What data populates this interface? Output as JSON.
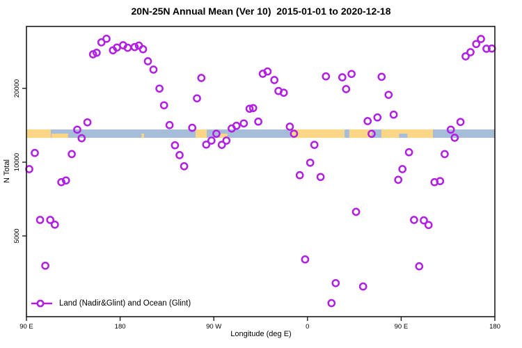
{
  "title": "20N-25N Annual Mean (Ver 10)  2015-01-01 to 2020-12-18",
  "axes": {
    "x": {
      "label": "Longitude (deg E)",
      "range_axis_degrees": [
        0,
        450
      ],
      "ticks": [
        {
          "pos": 0,
          "label": "90 E"
        },
        {
          "pos": 90,
          "label": "180"
        },
        {
          "pos": 180,
          "label": "90 W"
        },
        {
          "pos": 270,
          "label": "0"
        },
        {
          "pos": 360,
          "label": "90 E"
        },
        {
          "pos": 450,
          "label": "180"
        }
      ]
    },
    "y": {
      "label": "N Total",
      "scale": "log",
      "ticks": [
        {
          "value": 5000,
          "label": "5000"
        },
        {
          "value": 10000,
          "label": "10000"
        },
        {
          "value": 20000,
          "label": "20000"
        }
      ]
    }
  },
  "legend": {
    "label": "Land (Nadir&Glint) and Ocean (Glint)"
  },
  "colors": {
    "point": "#B21FE4",
    "land": "#FBD687",
    "ocean": "#A6BDD9",
    "frame": "#1a1a1a",
    "text": "#000000"
  },
  "map_band": {
    "description": "land/ocean strip for 20N-25N drawn across plot",
    "n_value_center": 13000,
    "segments": [
      {
        "from": 0,
        "to": 23.4,
        "surface": "land"
      },
      {
        "from": 23.4,
        "to": 162.5,
        "surface": "ocean"
      },
      {
        "from": 162.5,
        "to": 173.2,
        "surface": "land"
      },
      {
        "from": 173.2,
        "to": 254.1,
        "surface": "ocean"
      },
      {
        "from": 254.1,
        "to": 305.6,
        "surface": "land"
      },
      {
        "from": 305.6,
        "to": 310.2,
        "surface": "ocean"
      },
      {
        "from": 310.2,
        "to": 331.6,
        "surface": "land"
      },
      {
        "from": 331.6,
        "to": 341.0,
        "surface": "ocean"
      },
      {
        "from": 341.0,
        "to": 390.5,
        "surface": "land"
      },
      {
        "from": 390.5,
        "to": 450,
        "surface": "ocean"
      }
    ],
    "islands": [
      {
        "from": 24,
        "to": 40,
        "surface": "land"
      },
      {
        "from": 110.5,
        "to": 113,
        "surface": "land"
      },
      {
        "from": 186,
        "to": 193,
        "surface": "land"
      },
      {
        "from": 358,
        "to": 366,
        "surface": "ocean"
      }
    ]
  },
  "chart_data": {
    "type": "scatter",
    "title": "20N-25N Annual Mean (Ver 10)  2015-01-01 to 2020-12-18",
    "xlabel": "Longitude (deg E)",
    "ylabel": "N Total",
    "x_axis_note": "axis position in degrees east of 90E; 0=90E, 90=180, 180=90W, 270=0, 360=90E, 450=180",
    "y_scale": "log",
    "ylim": [
      2300,
      36000
    ],
    "series_name": "Land (Nadir&Glint) and Ocean (Glint)",
    "points": [
      [
        2.7,
        9370
      ],
      [
        8.0,
        10910
      ],
      [
        13.1,
        5810
      ],
      [
        18.1,
        3780
      ],
      [
        22.9,
        5810
      ],
      [
        27.3,
        5560
      ],
      [
        33.5,
        8290
      ],
      [
        38.0,
        8420
      ],
      [
        43.5,
        10790
      ],
      [
        48.8,
        13570
      ],
      [
        53.0,
        12520
      ],
      [
        58.6,
        14540
      ],
      [
        64.0,
        27550
      ],
      [
        67.5,
        27950
      ],
      [
        72.0,
        30810
      ],
      [
        76.9,
        31890
      ],
      [
        83.1,
        28610
      ],
      [
        86.9,
        29370
      ],
      [
        92.9,
        30000
      ],
      [
        97.3,
        29300
      ],
      [
        104.0,
        29500
      ],
      [
        108.0,
        29900
      ],
      [
        112.0,
        28900
      ],
      [
        116.7,
        25810
      ],
      [
        122.0,
        23860
      ],
      [
        127.8,
        19960
      ],
      [
        132.2,
        17060
      ],
      [
        137.5,
        14170
      ],
      [
        142.7,
        11720
      ],
      [
        147.1,
        10680
      ],
      [
        151.5,
        9620
      ],
      [
        159.3,
        13810
      ],
      [
        163.8,
        18210
      ],
      [
        168.0,
        22060
      ],
      [
        172.7,
        11790
      ],
      [
        177.7,
        12250
      ],
      [
        182.5,
        13070
      ],
      [
        187.7,
        11770
      ],
      [
        192.1,
        12250
      ],
      [
        197.2,
        13720
      ],
      [
        201.7,
        14080
      ],
      [
        208.8,
        14390
      ],
      [
        214.4,
        16520
      ],
      [
        217.8,
        16620
      ],
      [
        222.7,
        14640
      ],
      [
        227.1,
        22950
      ],
      [
        231.6,
        23440
      ],
      [
        238.2,
        21630
      ],
      [
        242.1,
        19520
      ],
      [
        247.2,
        19200
      ],
      [
        253.0,
        13960
      ],
      [
        257.0,
        13070
      ],
      [
        262.6,
        8850
      ],
      [
        267.7,
        4010
      ],
      [
        272.6,
        9950
      ],
      [
        276.6,
        11770
      ],
      [
        282.6,
        8700
      ],
      [
        287.7,
        22400
      ],
      [
        293.1,
        2660
      ],
      [
        297.1,
        3210
      ],
      [
        303.4,
        22190
      ],
      [
        307.1,
        19870
      ],
      [
        312.3,
        22900
      ],
      [
        316.7,
        6270
      ],
      [
        323.4,
        3110
      ],
      [
        327.8,
        14710
      ],
      [
        331.6,
        13060
      ],
      [
        337.2,
        15230
      ],
      [
        341.2,
        22300
      ],
      [
        347.9,
        18820
      ],
      [
        352.8,
        15630
      ],
      [
        357.2,
        8470
      ],
      [
        361.2,
        9370
      ],
      [
        367.5,
        10980
      ],
      [
        372.4,
        5810
      ],
      [
        377.3,
        3760
      ],
      [
        381.8,
        5790
      ],
      [
        386.3,
        5540
      ],
      [
        392.0,
        8290
      ],
      [
        397.4,
        8370
      ],
      [
        401.8,
        10790
      ],
      [
        407.7,
        13570
      ],
      [
        411.4,
        12580
      ],
      [
        417.0,
        14590
      ],
      [
        421.9,
        27020
      ],
      [
        426.6,
        28100
      ],
      [
        432.1,
        30340
      ],
      [
        436.6,
        31830
      ],
      [
        442.0,
        29040
      ],
      [
        447.1,
        29100
      ]
    ]
  }
}
